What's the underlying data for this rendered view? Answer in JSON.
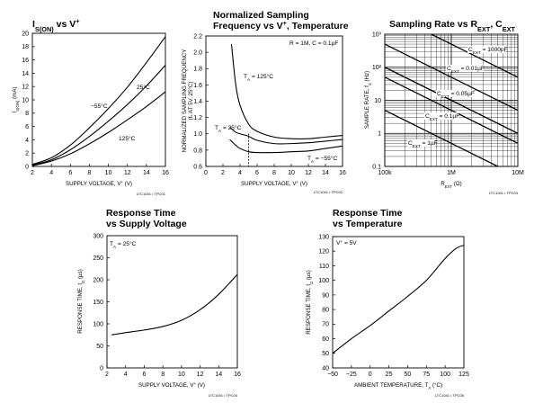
{
  "chart_data": [
    {
      "type": "line",
      "title": "I_S(ON) vs V+",
      "xlabel": "SUPPLY VOLTAGE, V+ (V)",
      "ylabel": "I_S(ON) (mA)",
      "xlim": [
        2,
        16
      ],
      "ylim": [
        0,
        20
      ],
      "xticks": [
        2,
        4,
        6,
        8,
        10,
        12,
        14,
        16
      ],
      "yticks": [
        0,
        2,
        4,
        6,
        8,
        10,
        12,
        14,
        16,
        18,
        20
      ],
      "grid": false,
      "series": [
        {
          "name": "-55°C",
          "x": [
            2,
            4,
            6,
            8,
            10,
            12,
            14,
            16
          ],
          "y": [
            0.3,
            1.3,
            3.2,
            5.8,
            8.7,
            11.9,
            15.6,
            19.5
          ]
        },
        {
          "name": "25°C",
          "x": [
            2,
            4,
            6,
            8,
            10,
            12,
            14,
            16
          ],
          "y": [
            0.2,
            1.0,
            2.5,
            4.5,
            6.8,
            9.3,
            12.1,
            15.2
          ]
        },
        {
          "name": "125°C",
          "x": [
            2,
            4,
            6,
            8,
            10,
            12,
            14,
            16
          ],
          "y": [
            0.1,
            0.8,
            1.9,
            3.4,
            5.1,
            7.0,
            9.0,
            11.2
          ]
        }
      ],
      "annotations": [
        "-55°C",
        "25°C",
        "125°C"
      ],
      "figure_id": "LTC1041 • TPC01"
    },
    {
      "type": "line",
      "title": "Normalized Sampling Frequency vs V+, Temperature",
      "xlabel": "SUPPLY VOLTAGE, V+ (V)",
      "ylabel": "NORMALIZED SAMPLING FREQUENCY (fS AT 5V, 25°C)",
      "xlim": [
        0,
        16
      ],
      "ylim": [
        0.6,
        2.2
      ],
      "xticks": [
        0,
        2,
        4,
        6,
        8,
        10,
        12,
        14,
        16
      ],
      "yticks": [
        0.6,
        0.8,
        1.0,
        1.2,
        1.4,
        1.6,
        1.8,
        2.0,
        2.2
      ],
      "grid": false,
      "series": [
        {
          "name": "TA = 125°C",
          "x": [
            3,
            3.5,
            4,
            5,
            6,
            8,
            10,
            12,
            14,
            16
          ],
          "y": [
            2.1,
            1.6,
            1.35,
            1.12,
            1.03,
            0.96,
            0.94,
            0.94,
            0.96,
            0.98
          ]
        },
        {
          "name": "TA = 25°C",
          "x": [
            2.8,
            3.5,
            4,
            5,
            6,
            8,
            10,
            12,
            14,
            16
          ],
          "y": [
            1.08,
            1.02,
            1.0,
            0.97,
            0.92,
            0.88,
            0.88,
            0.89,
            0.91,
            0.93
          ]
        },
        {
          "name": "TA = -55°C",
          "x": [
            2.8,
            3.5,
            4,
            5,
            6,
            8,
            10,
            12,
            14,
            16
          ],
          "y": [
            0.93,
            0.86,
            0.82,
            0.78,
            0.77,
            0.77,
            0.78,
            0.79,
            0.82,
            0.85
          ]
        }
      ],
      "annotations": [
        "R = 1M, C = 0.1µF",
        "TA = 125°C",
        "TA = 25°C",
        "TA = -55°C"
      ],
      "figure_id": "LTC1041 • TPC02"
    },
    {
      "type": "line",
      "title": "Sampling Rate vs REXT, CEXT",
      "xlabel": "REXT (Ω)",
      "ylabel": "SAMPLE RATE, fS (Hz)",
      "xscale": "log",
      "yscale": "log",
      "xlim": [
        100000,
        10000000
      ],
      "ylim": [
        0.1,
        1000
      ],
      "xticks": [
        "100k",
        "1M",
        "10M"
      ],
      "yticks": [
        "0.1",
        "1",
        "10",
        "10²",
        "10³"
      ],
      "grid": true,
      "series": [
        {
          "name": "CEXT = 1000pF",
          "x": [
            100000,
            10000000
          ],
          "y": [
            5000,
            50
          ]
        },
        {
          "name": "CEXT = 0.01µF",
          "x": [
            100000,
            10000000
          ],
          "y": [
            500,
            5
          ]
        },
        {
          "name": "CEXT = 0.05µF",
          "x": [
            100000,
            10000000
          ],
          "y": [
            100,
            1
          ]
        },
        {
          "name": "CEXT = 0.1µF",
          "x": [
            100000,
            10000000
          ],
          "y": [
            50,
            0.5
          ]
        },
        {
          "name": "CEXT = 1µF",
          "x": [
            100000,
            10000000
          ],
          "y": [
            5,
            0.05
          ]
        }
      ],
      "annotations": [
        "CEXT = 1000pF",
        "CEXT = 0.01µF",
        "CEXT = 0.05µF",
        "CEXT = 0.1µF",
        "CEXT = 1µF"
      ],
      "figure_id": "LTC1041 • TPC03"
    },
    {
      "type": "line",
      "title": "Response Time vs Supply Voltage",
      "xlabel": "SUPPLY VOLTAGE, V+ (V)",
      "ylabel": "RESPONSE TIME, tD (µs)",
      "xlim": [
        2,
        16
      ],
      "ylim": [
        0,
        300
      ],
      "xticks": [
        2,
        4,
        6,
        8,
        10,
        12,
        14,
        16
      ],
      "yticks": [
        0,
        50,
        100,
        150,
        200,
        250,
        300
      ],
      "grid": false,
      "series": [
        {
          "name": "TA = 25°C",
          "x": [
            2.5,
            4,
            6,
            8,
            10,
            12,
            14,
            16
          ],
          "y": [
            75,
            80,
            86,
            94,
            108,
            132,
            167,
            212
          ]
        }
      ],
      "annotations": [
        "TA = 25°C"
      ],
      "figure_id": "LTC1041 • TPC04"
    },
    {
      "type": "line",
      "title": "Response Time vs Temperature",
      "xlabel": "AMBIENT TEMPERATURE, TA (°C)",
      "ylabel": "RESPONSE TIME, tD (µs)",
      "xlim": [
        -50,
        125
      ],
      "ylim": [
        40,
        130
      ],
      "xticks": [
        -50,
        -25,
        0,
        25,
        50,
        75,
        100,
        125
      ],
      "yticks": [
        40,
        50,
        60,
        70,
        80,
        90,
        100,
        110,
        120,
        130
      ],
      "grid": false,
      "series": [
        {
          "name": "V+ = 5V",
          "x": [
            -50,
            -25,
            0,
            25,
            50,
            75,
            100,
            115,
            125
          ],
          "y": [
            50,
            60,
            69,
            79,
            89,
            100,
            115,
            122,
            124
          ]
        }
      ],
      "annotations": [
        "V+ = 5V"
      ],
      "figure_id": "LTC1041 • TPC05"
    }
  ]
}
